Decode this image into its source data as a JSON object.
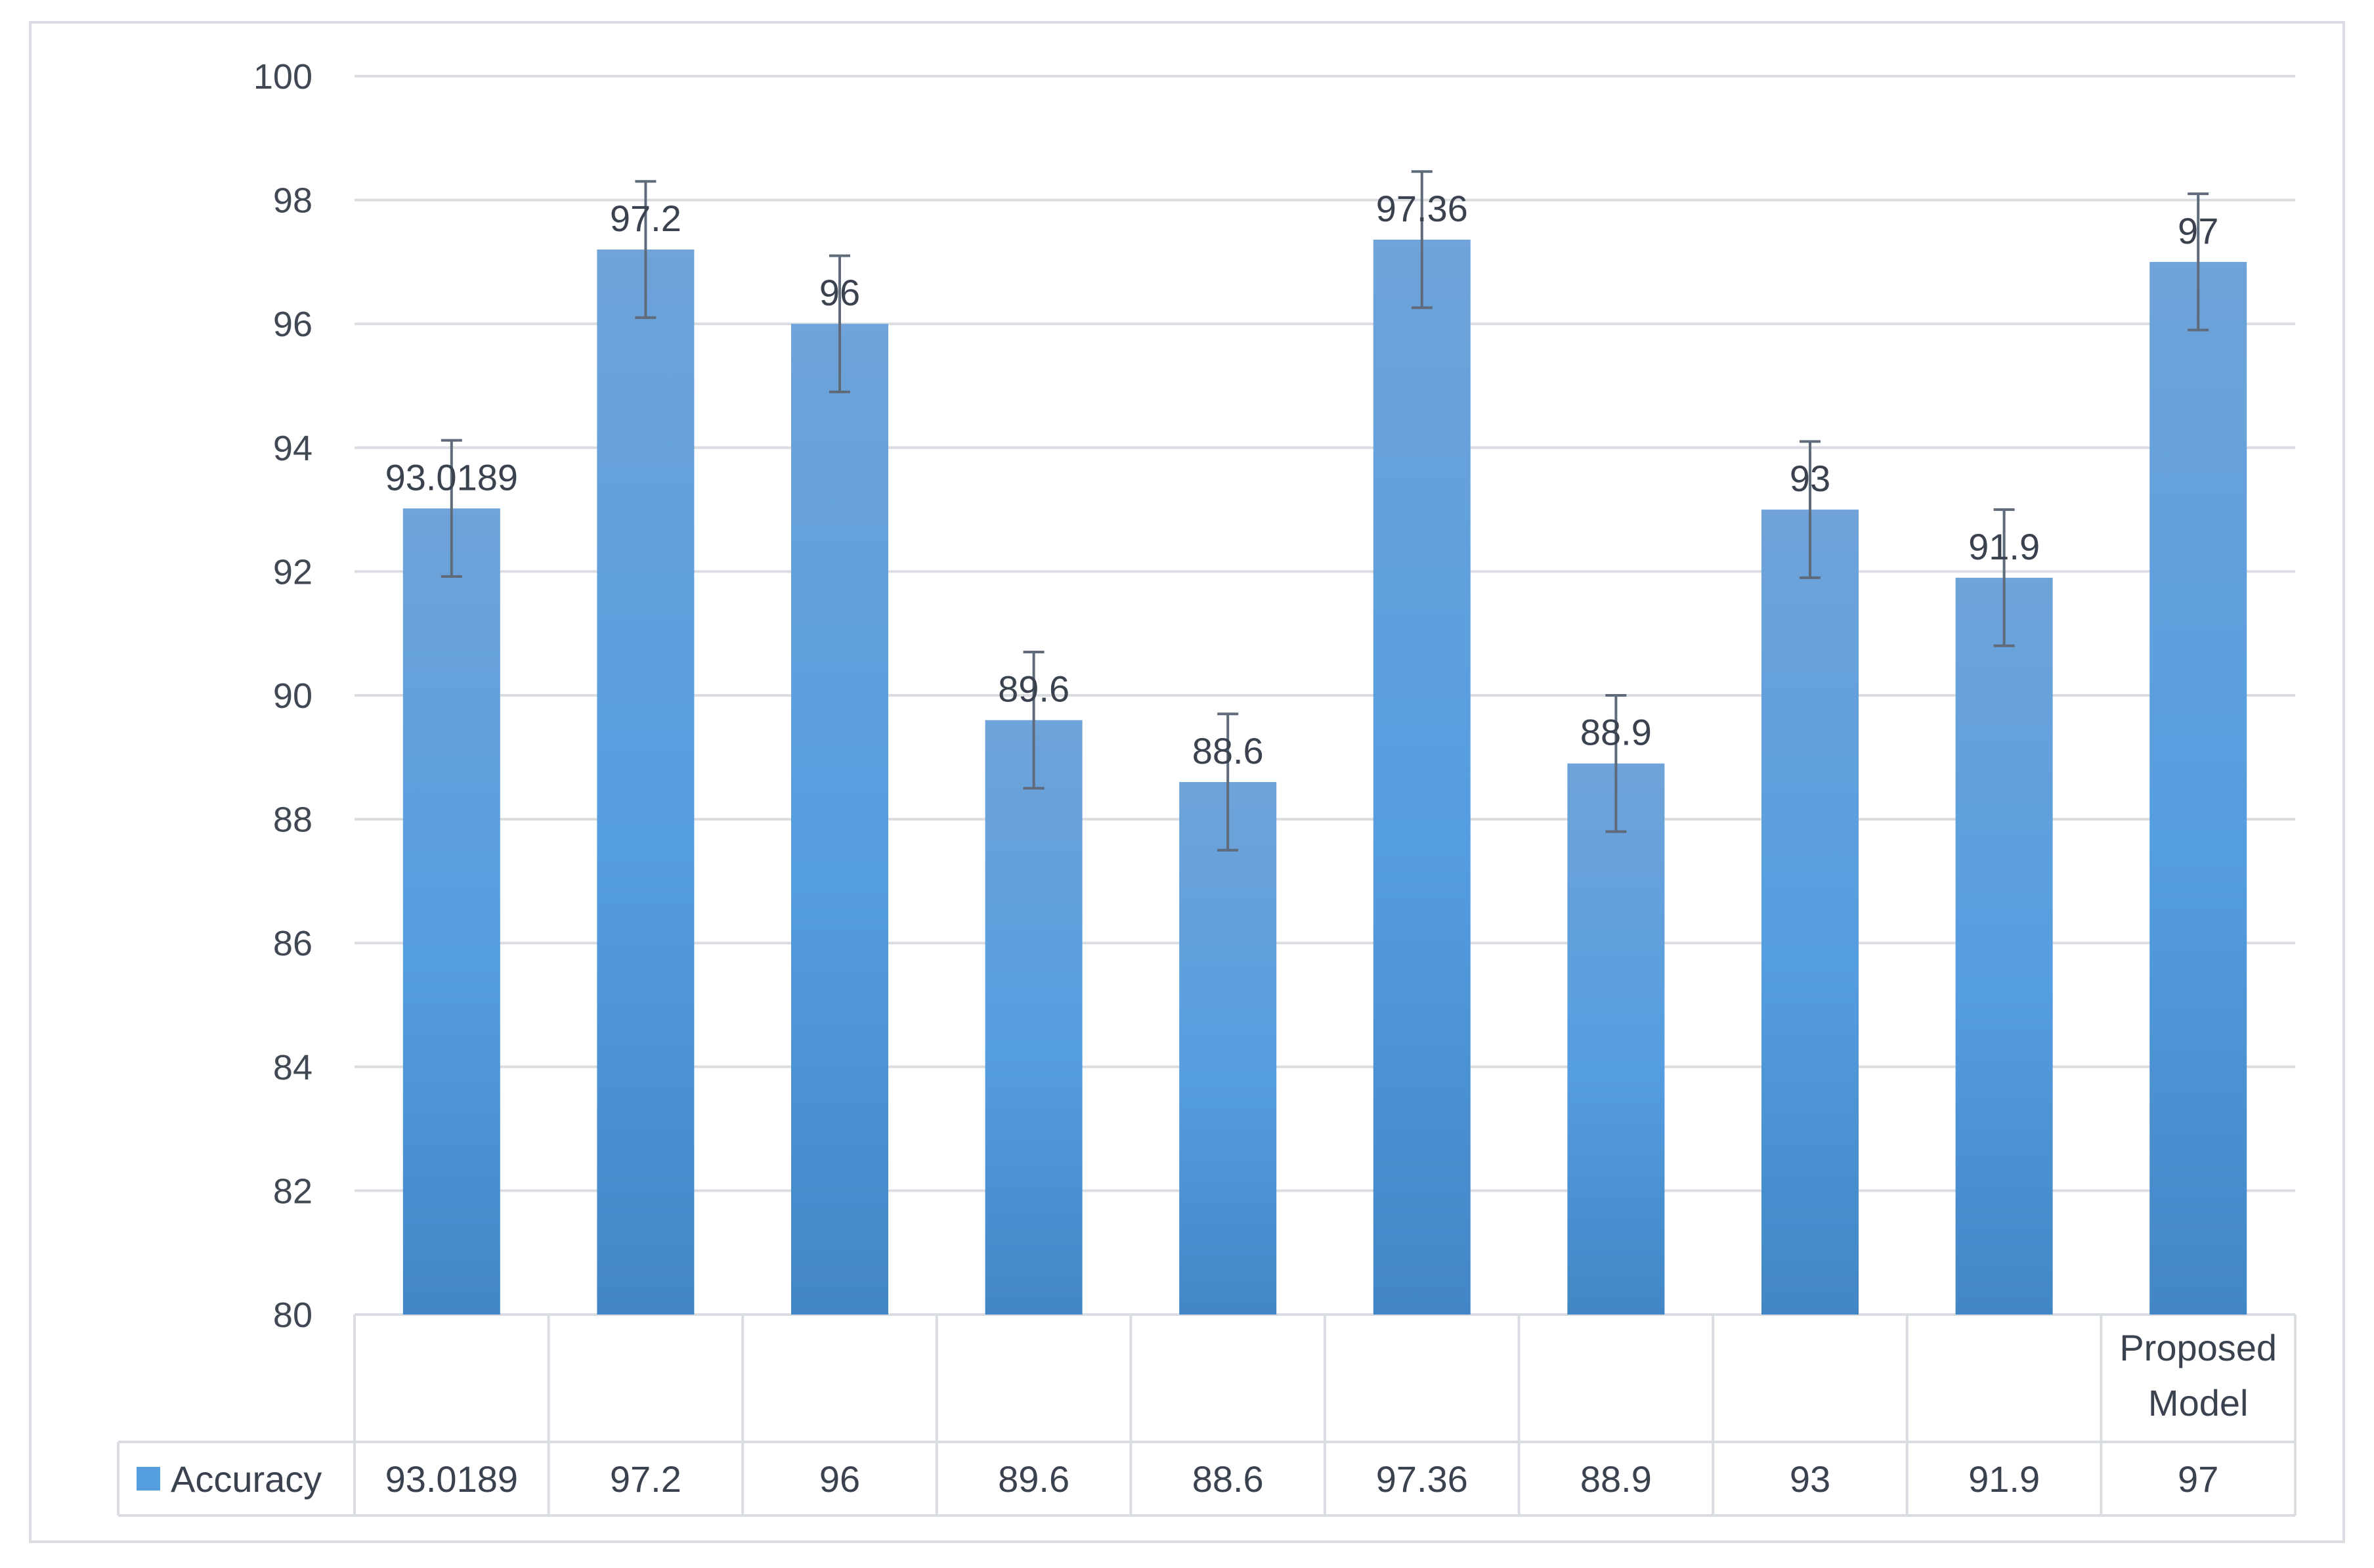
{
  "chart_data": {
    "type": "bar",
    "categories": [
      "",
      "",
      "",
      "",
      "",
      "",
      "",
      "",
      "",
      "Proposed Model"
    ],
    "series": [
      {
        "name": "Accuracy",
        "values": [
          93.0189,
          97.2,
          96,
          89.6,
          88.6,
          97.36,
          88.9,
          93,
          91.9,
          97
        ],
        "labels": [
          "93.0189",
          "97.2",
          "96",
          "89.6",
          "88.6",
          "97.36",
          "88.9",
          "93",
          "91.9",
          "97"
        ],
        "error_bar": 1.1
      }
    ],
    "y_ticks": [
      "80",
      "82",
      "84",
      "86",
      "88",
      "90",
      "92",
      "94",
      "96",
      "98",
      "100"
    ],
    "ylim": [
      80,
      100
    ],
    "y_step": 2,
    "grid": true,
    "legend": "data-table",
    "colors": {
      "bar_top": "#6fa3d9",
      "bar_mid": "#559ee0",
      "bar_bottom": "#4286c5",
      "error_bar": "#5f6b7a",
      "grid": "#d9dde2"
    }
  }
}
